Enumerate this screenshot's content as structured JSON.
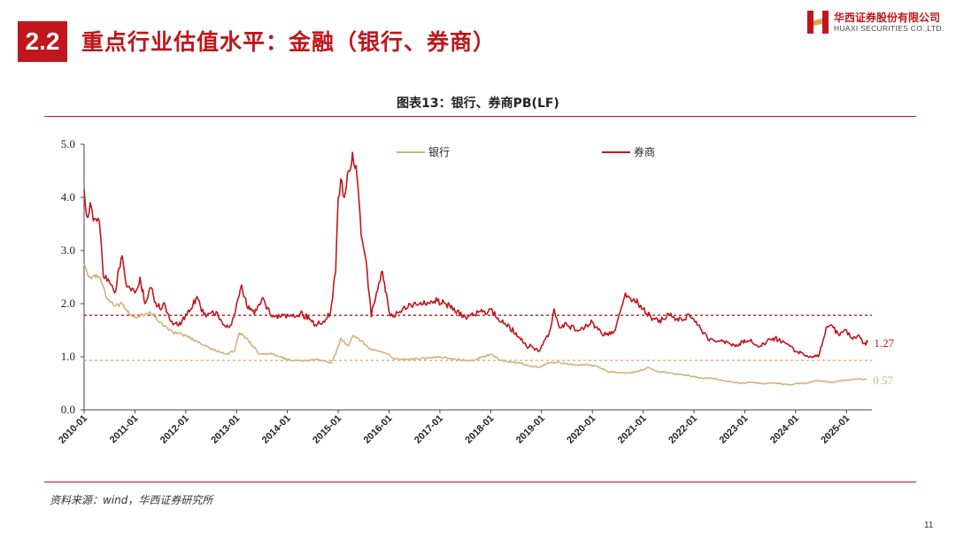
{
  "header": {
    "section_number": "2.2",
    "section_title": "重点行业估值水平：金融（银行、券商）",
    "logo_cn": "华西证券股份有限公司",
    "logo_en": "HUAXI SECURITIES CO.,LTD."
  },
  "source": "资料来源：wind，华西证券研究所",
  "page_number": "11",
  "chart_data": {
    "type": "line",
    "title": "图表13：银行、券商PB(LF)",
    "x_categories": [
      "2010-01",
      "2011-01",
      "2012-01",
      "2013-01",
      "2014-01",
      "2015-01",
      "2016-01",
      "2017-01",
      "2018-01",
      "2019-01",
      "2020-01",
      "2021-01",
      "2022-01",
      "2023-01",
      "2024-01",
      "2025-01"
    ],
    "ylim": [
      0,
      5
    ],
    "yticks": [
      "0.0",
      "1.0",
      "2.0",
      "3.0",
      "4.0",
      "5.0"
    ],
    "grid": false,
    "legend_position": "top",
    "series": [
      {
        "name": "银行",
        "color": "#d2b27c",
        "end_label": "0.57",
        "mean_line": 0.93,
        "points": [
          [
            2010.0,
            2.75
          ],
          [
            2010.1,
            2.5
          ],
          [
            2010.3,
            2.5
          ],
          [
            2010.45,
            2.1
          ],
          [
            2010.6,
            1.95
          ],
          [
            2010.75,
            2.0
          ],
          [
            2010.85,
            1.85
          ],
          [
            2011.0,
            1.75
          ],
          [
            2011.2,
            1.8
          ],
          [
            2011.3,
            1.85
          ],
          [
            2011.5,
            1.65
          ],
          [
            2011.75,
            1.45
          ],
          [
            2012.0,
            1.4
          ],
          [
            2012.2,
            1.3
          ],
          [
            2012.5,
            1.15
          ],
          [
            2012.8,
            1.05
          ],
          [
            2012.95,
            1.1
          ],
          [
            2013.05,
            1.45
          ],
          [
            2013.2,
            1.35
          ],
          [
            2013.45,
            1.05
          ],
          [
            2013.7,
            1.05
          ],
          [
            2014.0,
            0.95
          ],
          [
            2014.3,
            0.92
          ],
          [
            2014.6,
            0.95
          ],
          [
            2014.85,
            0.88
          ],
          [
            2014.95,
            1.05
          ],
          [
            2015.05,
            1.35
          ],
          [
            2015.2,
            1.2
          ],
          [
            2015.3,
            1.4
          ],
          [
            2015.45,
            1.3
          ],
          [
            2015.6,
            1.15
          ],
          [
            2015.8,
            1.1
          ],
          [
            2016.0,
            1.05
          ],
          [
            2016.1,
            0.95
          ],
          [
            2016.4,
            0.95
          ],
          [
            2016.8,
            0.98
          ],
          [
            2017.0,
            1.0
          ],
          [
            2017.3,
            0.95
          ],
          [
            2017.6,
            0.92
          ],
          [
            2017.8,
            0.98
          ],
          [
            2018.0,
            1.05
          ],
          [
            2018.15,
            0.95
          ],
          [
            2018.4,
            0.9
          ],
          [
            2018.6,
            0.88
          ],
          [
            2018.8,
            0.82
          ],
          [
            2018.95,
            0.8
          ],
          [
            2019.1,
            0.88
          ],
          [
            2019.3,
            0.9
          ],
          [
            2019.6,
            0.85
          ],
          [
            2019.9,
            0.85
          ],
          [
            2020.1,
            0.82
          ],
          [
            2020.3,
            0.72
          ],
          [
            2020.6,
            0.7
          ],
          [
            2020.8,
            0.7
          ],
          [
            2021.0,
            0.75
          ],
          [
            2021.1,
            0.8
          ],
          [
            2021.3,
            0.72
          ],
          [
            2021.6,
            0.68
          ],
          [
            2021.9,
            0.65
          ],
          [
            2022.1,
            0.6
          ],
          [
            2022.3,
            0.6
          ],
          [
            2022.6,
            0.55
          ],
          [
            2022.9,
            0.5
          ],
          [
            2023.1,
            0.52
          ],
          [
            2023.3,
            0.5
          ],
          [
            2023.6,
            0.5
          ],
          [
            2023.9,
            0.47
          ],
          [
            2024.0,
            0.5
          ],
          [
            2024.2,
            0.5
          ],
          [
            2024.4,
            0.55
          ],
          [
            2024.7,
            0.52
          ],
          [
            2024.9,
            0.55
          ],
          [
            2025.2,
            0.58
          ],
          [
            2025.4,
            0.57
          ]
        ]
      },
      {
        "name": "券商",
        "color": "#c0161c",
        "end_label": "1.27",
        "mean_line": 1.78,
        "points": [
          [
            2010.0,
            4.15
          ],
          [
            2010.05,
            3.65
          ],
          [
            2010.12,
            3.9
          ],
          [
            2010.2,
            3.6
          ],
          [
            2010.3,
            3.55
          ],
          [
            2010.38,
            2.5
          ],
          [
            2010.5,
            2.4
          ],
          [
            2010.6,
            2.2
          ],
          [
            2010.75,
            2.9
          ],
          [
            2010.82,
            2.4
          ],
          [
            2010.9,
            2.3
          ],
          [
            2011.0,
            2.2
          ],
          [
            2011.1,
            2.5
          ],
          [
            2011.2,
            2.0
          ],
          [
            2011.3,
            2.3
          ],
          [
            2011.45,
            1.95
          ],
          [
            2011.6,
            1.95
          ],
          [
            2011.75,
            1.6
          ],
          [
            2011.9,
            1.6
          ],
          [
            2012.0,
            1.8
          ],
          [
            2012.1,
            1.9
          ],
          [
            2012.2,
            2.1
          ],
          [
            2012.4,
            1.75
          ],
          [
            2012.6,
            1.85
          ],
          [
            2012.75,
            1.6
          ],
          [
            2012.9,
            1.6
          ],
          [
            2013.0,
            2.0
          ],
          [
            2013.1,
            2.35
          ],
          [
            2013.2,
            1.95
          ],
          [
            2013.35,
            1.8
          ],
          [
            2013.5,
            2.1
          ],
          [
            2013.7,
            1.75
          ],
          [
            2013.85,
            1.75
          ],
          [
            2014.0,
            1.8
          ],
          [
            2014.3,
            1.8
          ],
          [
            2014.55,
            1.6
          ],
          [
            2014.75,
            1.7
          ],
          [
            2014.85,
            1.85
          ],
          [
            2014.95,
            2.6
          ],
          [
            2015.0,
            4.0
          ],
          [
            2015.05,
            4.35
          ],
          [
            2015.12,
            4.0
          ],
          [
            2015.2,
            4.5
          ],
          [
            2015.28,
            4.85
          ],
          [
            2015.35,
            4.6
          ],
          [
            2015.45,
            3.3
          ],
          [
            2015.55,
            2.8
          ],
          [
            2015.65,
            1.75
          ],
          [
            2015.75,
            2.2
          ],
          [
            2015.85,
            2.6
          ],
          [
            2015.95,
            2.2
          ],
          [
            2016.0,
            1.85
          ],
          [
            2016.1,
            1.75
          ],
          [
            2016.3,
            1.95
          ],
          [
            2016.6,
            2.0
          ],
          [
            2016.8,
            2.0
          ],
          [
            2016.95,
            2.05
          ],
          [
            2017.1,
            2.0
          ],
          [
            2017.3,
            1.85
          ],
          [
            2017.5,
            1.75
          ],
          [
            2017.8,
            1.85
          ],
          [
            2017.9,
            1.8
          ],
          [
            2018.0,
            1.9
          ],
          [
            2018.1,
            1.75
          ],
          [
            2018.3,
            1.6
          ],
          [
            2018.5,
            1.45
          ],
          [
            2018.7,
            1.2
          ],
          [
            2018.8,
            1.2
          ],
          [
            2018.95,
            1.1
          ],
          [
            2019.05,
            1.3
          ],
          [
            2019.15,
            1.45
          ],
          [
            2019.25,
            1.9
          ],
          [
            2019.35,
            1.55
          ],
          [
            2019.5,
            1.6
          ],
          [
            2019.7,
            1.5
          ],
          [
            2019.85,
            1.55
          ],
          [
            2020.0,
            1.65
          ],
          [
            2020.2,
            1.4
          ],
          [
            2020.45,
            1.5
          ],
          [
            2020.55,
            1.85
          ],
          [
            2020.65,
            2.2
          ],
          [
            2020.75,
            2.1
          ],
          [
            2020.9,
            2.0
          ],
          [
            2021.0,
            1.9
          ],
          [
            2021.15,
            1.75
          ],
          [
            2021.3,
            1.65
          ],
          [
            2021.5,
            1.8
          ],
          [
            2021.65,
            1.7
          ],
          [
            2021.8,
            1.7
          ],
          [
            2021.9,
            1.8
          ],
          [
            2022.0,
            1.7
          ],
          [
            2022.15,
            1.5
          ],
          [
            2022.3,
            1.3
          ],
          [
            2022.5,
            1.3
          ],
          [
            2022.7,
            1.25
          ],
          [
            2022.85,
            1.2
          ],
          [
            2022.95,
            1.3
          ],
          [
            2023.1,
            1.3
          ],
          [
            2023.3,
            1.2
          ],
          [
            2023.55,
            1.35
          ],
          [
            2023.75,
            1.3
          ],
          [
            2023.9,
            1.2
          ],
          [
            2024.0,
            1.1
          ],
          [
            2024.15,
            1.05
          ],
          [
            2024.3,
            1.0
          ],
          [
            2024.45,
            1.0
          ],
          [
            2024.6,
            1.55
          ],
          [
            2024.7,
            1.6
          ],
          [
            2024.85,
            1.4
          ],
          [
            2025.0,
            1.5
          ],
          [
            2025.1,
            1.35
          ],
          [
            2025.25,
            1.4
          ],
          [
            2025.32,
            1.25
          ],
          [
            2025.42,
            1.27
          ]
        ]
      }
    ]
  }
}
